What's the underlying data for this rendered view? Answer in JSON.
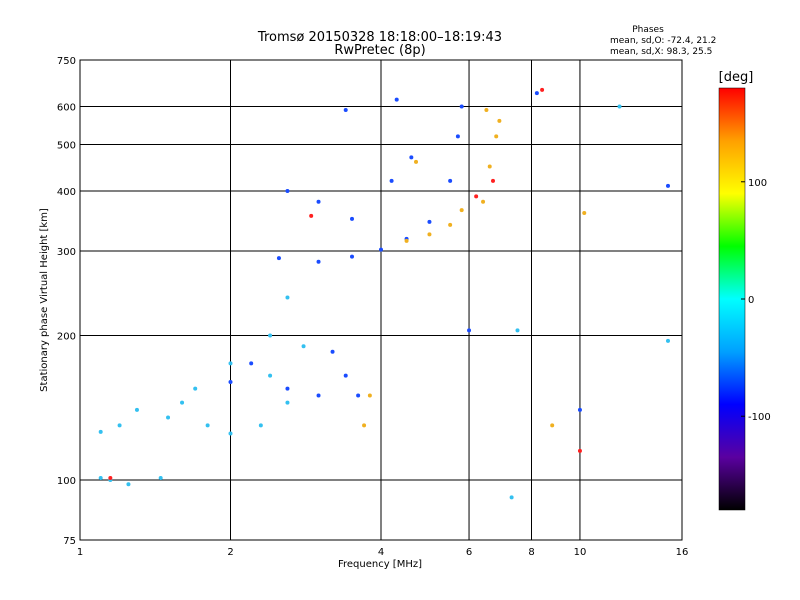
{
  "chart_data": {
    "type": "scatter",
    "title": "Tromsø 20150328 18:18:00–18:19:43",
    "subtitle": "RwPretec (8p)",
    "xlabel": "Frequency [MHz]",
    "ylabel": "Stationary phase Virtual Height [km]",
    "x_scale": "log",
    "y_scale": "log",
    "xlim": [
      1,
      16
    ],
    "ylim": [
      75,
      750
    ],
    "x_ticks": [
      1,
      2,
      4,
      6,
      8,
      10,
      16
    ],
    "y_ticks": [
      75,
      100,
      200,
      300,
      400,
      500,
      600,
      750
    ],
    "grid": true,
    "stats": {
      "heading": "Phases",
      "line_o": "mean, sd,O: -72.4, 21.2",
      "line_x": "mean, sd,X:  98.3, 25.5"
    },
    "colorbar": {
      "label": "[deg]",
      "range": [
        -180,
        180
      ],
      "ticks": [
        100,
        0,
        -100
      ],
      "palette": [
        "#000000",
        "#5a00a0",
        "#0000ff",
        "#00a0ff",
        "#00ffff",
        "#00ff00",
        "#ffff00",
        "#ffa000",
        "#ff0000"
      ]
    },
    "series": [
      {
        "color": "#1a4cff",
        "points": [
          {
            "x": 2.5,
            "y": 290
          },
          {
            "x": 3.0,
            "y": 285
          },
          {
            "x": 3.5,
            "y": 292
          },
          {
            "x": 4.0,
            "y": 302
          },
          {
            "x": 4.5,
            "y": 318
          },
          {
            "x": 5.0,
            "y": 345
          },
          {
            "x": 5.5,
            "y": 420
          },
          {
            "x": 5.7,
            "y": 520
          },
          {
            "x": 5.8,
            "y": 600
          },
          {
            "x": 2.6,
            "y": 400
          },
          {
            "x": 3.0,
            "y": 380
          },
          {
            "x": 3.5,
            "y": 350
          },
          {
            "x": 4.2,
            "y": 420
          },
          {
            "x": 4.6,
            "y": 470
          },
          {
            "x": 3.4,
            "y": 590
          },
          {
            "x": 4.3,
            "y": 620
          },
          {
            "x": 2.2,
            "y": 175
          },
          {
            "x": 2.6,
            "y": 155
          },
          {
            "x": 3.0,
            "y": 150
          },
          {
            "x": 3.4,
            "y": 165
          },
          {
            "x": 3.6,
            "y": 150
          },
          {
            "x": 3.2,
            "y": 185
          },
          {
            "x": 2.0,
            "y": 160
          },
          {
            "x": 6.0,
            "y": 205
          },
          {
            "x": 8.2,
            "y": 640
          },
          {
            "x": 10.0,
            "y": 140
          },
          {
            "x": 15.0,
            "y": 410
          }
        ]
      },
      {
        "color": "#33c0f0",
        "points": [
          {
            "x": 1.1,
            "y": 126
          },
          {
            "x": 1.3,
            "y": 140
          },
          {
            "x": 1.5,
            "y": 135
          },
          {
            "x": 1.8,
            "y": 130
          },
          {
            "x": 2.0,
            "y": 125
          },
          {
            "x": 2.3,
            "y": 130
          },
          {
            "x": 2.6,
            "y": 145
          },
          {
            "x": 1.7,
            "y": 155
          },
          {
            "x": 2.0,
            "y": 175
          },
          {
            "x": 2.4,
            "y": 200
          },
          {
            "x": 2.6,
            "y": 240
          },
          {
            "x": 2.4,
            "y": 165
          },
          {
            "x": 1.6,
            "y": 145
          },
          {
            "x": 1.2,
            "y": 130
          },
          {
            "x": 2.8,
            "y": 190
          },
          {
            "x": 1.1,
            "y": 101
          },
          {
            "x": 1.25,
            "y": 98
          },
          {
            "x": 1.45,
            "y": 101
          },
          {
            "x": 1.15,
            "y": 100
          },
          {
            "x": 7.3,
            "y": 92
          },
          {
            "x": 12.0,
            "y": 600
          },
          {
            "x": 7.5,
            "y": 205
          },
          {
            "x": 15.0,
            "y": 195
          }
        ]
      },
      {
        "color": "#f0b020",
        "points": [
          {
            "x": 4.5,
            "y": 315
          },
          {
            "x": 5.0,
            "y": 325
          },
          {
            "x": 5.5,
            "y": 340
          },
          {
            "x": 5.8,
            "y": 365
          },
          {
            "x": 6.4,
            "y": 380
          },
          {
            "x": 6.6,
            "y": 450
          },
          {
            "x": 6.8,
            "y": 520
          },
          {
            "x": 6.5,
            "y": 590
          },
          {
            "x": 3.7,
            "y": 130
          },
          {
            "x": 3.8,
            "y": 150
          },
          {
            "x": 4.7,
            "y": 460
          },
          {
            "x": 6.9,
            "y": 560
          },
          {
            "x": 8.8,
            "y": 130
          },
          {
            "x": 10.2,
            "y": 360
          }
        ]
      },
      {
        "color": "#ff2020",
        "points": [
          {
            "x": 6.2,
            "y": 390
          },
          {
            "x": 6.7,
            "y": 420
          },
          {
            "x": 2.9,
            "y": 355
          },
          {
            "x": 8.4,
            "y": 650
          },
          {
            "x": 10.0,
            "y": 115
          },
          {
            "x": 1.15,
            "y": 101
          }
        ]
      }
    ]
  }
}
